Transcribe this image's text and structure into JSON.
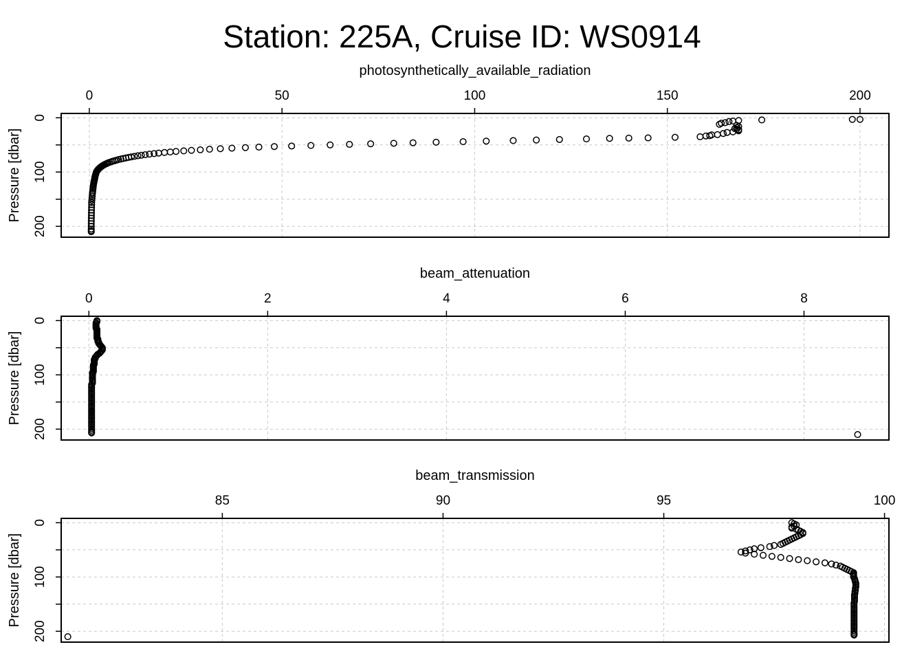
{
  "figure": {
    "title": "Station: 225A, Cruise ID: WS0914"
  },
  "chart_data": [
    {
      "type": "scatter",
      "title": "photosynthetically_available_radiation",
      "xlabel": "",
      "ylabel": "Pressure [dbar]",
      "xlim": [
        -7.3,
        207.5
      ],
      "ylim": [
        220,
        -8
      ],
      "y_reversed": true,
      "x_axis_position": "top",
      "grid": true,
      "xticks": [
        0,
        50,
        100,
        150,
        200
      ],
      "yticks": [
        0,
        100,
        200
      ],
      "minor_yticks": [
        50,
        150
      ],
      "x": [
        198,
        200,
        174.5,
        168.5,
        167,
        166,
        165,
        164,
        163.5,
        168,
        168.5,
        168,
        167.5,
        168,
        168.5,
        168.5,
        167,
        165.5,
        164.5,
        163,
        161.5,
        161,
        160,
        158.5,
        152,
        145,
        140,
        135,
        129,
        122,
        116,
        110,
        103,
        97,
        90,
        84,
        79,
        73,
        67.5,
        62.5,
        57.5,
        52.5,
        48,
        44,
        40.5,
        37,
        34,
        31.2,
        28.8,
        26.5,
        24.5,
        22.5,
        21,
        19.5,
        18,
        16.8,
        15.6,
        14.5,
        13.5,
        12.6,
        11.7,
        10.9,
        10.2,
        9.5,
        8.8,
        8.2,
        7.6,
        7.1,
        6.6,
        6.1,
        5.7,
        5.3,
        4.9,
        4.6,
        4.3,
        4,
        3.75,
        3.5,
        3.3,
        3.1,
        2.9,
        2.75,
        2.6,
        2.45,
        2.3,
        2.2,
        2.1,
        2,
        1.9,
        1.82,
        1.74,
        1.66,
        1.58,
        1.5,
        1.45,
        1.4,
        1.34,
        1.28,
        1.22,
        1.16,
        1.1,
        1.05,
        1,
        0.95,
        0.9,
        0.85,
        0.8,
        0.75,
        0.7,
        0.65,
        0.6,
        0.6,
        0.58,
        0.56,
        0.55,
        0.54,
        0.53,
        0.52,
        0.51,
        0.5,
        0.5,
        0.5,
        0.5
      ],
      "y": [
        3,
        3,
        4,
        5,
        6,
        7,
        9,
        10,
        12,
        14,
        16,
        18,
        20,
        21,
        22,
        24,
        26,
        27,
        29,
        31,
        31.5,
        33,
        33.5,
        35,
        36,
        37,
        37.5,
        38,
        39,
        40,
        41,
        42,
        43,
        44,
        45,
        46,
        47,
        48,
        49,
        50,
        51,
        52,
        53,
        54,
        55,
        56,
        57,
        58,
        59,
        60,
        61,
        62,
        63,
        64,
        65,
        66,
        67,
        68,
        69,
        70,
        71,
        72,
        73,
        74,
        75,
        76,
        77,
        78,
        79,
        80,
        81,
        82,
        83,
        84,
        85,
        86,
        87,
        88,
        89,
        90,
        91,
        92,
        93,
        94,
        95,
        96,
        97,
        98,
        99,
        100,
        102,
        104,
        106,
        108,
        110,
        112,
        114,
        116,
        118,
        120,
        122,
        125,
        128,
        131,
        134,
        137,
        140,
        144,
        148,
        152,
        156,
        160,
        165,
        170,
        175,
        180,
        185,
        190,
        195,
        200,
        205,
        208,
        210
      ]
    },
    {
      "type": "scatter",
      "title": "beam_attenuation",
      "xlabel": "",
      "ylabel": "Pressure [dbar]",
      "xlim": [
        -0.31,
        8.95
      ],
      "ylim": [
        220,
        -8
      ],
      "y_reversed": true,
      "x_axis_position": "top",
      "grid": true,
      "xticks": [
        0,
        2,
        4,
        6,
        8
      ],
      "yticks": [
        0,
        100,
        200
      ],
      "minor_yticks": [
        50,
        150
      ],
      "x": [
        0.09,
        0.09,
        0.08,
        0.08,
        0.08,
        0.08,
        0.08,
        0.08,
        0.09,
        0.09,
        0.09,
        0.09,
        0.09,
        0.09,
        0.09,
        0.09,
        0.09,
        0.1,
        0.1,
        0.1,
        0.11,
        0.11,
        0.12,
        0.13,
        0.14,
        0.15,
        0.15,
        0.15,
        0.14,
        0.13,
        0.12,
        0.1,
        0.09,
        0.08,
        0.07,
        0.07,
        0.06,
        0.06,
        0.06,
        0.06,
        0.06,
        0.05,
        0.05,
        0.05,
        0.05,
        0.05,
        0.05,
        0.05,
        0.04,
        0.04,
        0.04,
        0.04,
        0.04,
        0.04,
        0.04,
        0.04,
        0.03,
        0.03,
        0.03,
        0.03,
        0.03,
        0.03,
        0.03,
        0.03,
        0.03,
        0.03,
        0.03,
        0.03,
        0.03,
        0.03,
        0.03,
        0.03,
        0.03,
        0.03,
        0.03,
        0.03,
        0.03,
        0.03,
        0.03,
        0.03,
        0.03,
        0.03,
        0.03,
        0.03,
        0.03,
        0.03,
        0.03,
        8.6
      ],
      "y": [
        0,
        2,
        4,
        6,
        8,
        10,
        12,
        14,
        16,
        18,
        20,
        22,
        24,
        26,
        28,
        30,
        32,
        34,
        36,
        38,
        40,
        42,
        44,
        46,
        48,
        50,
        52,
        54,
        56,
        58,
        60,
        62,
        64,
        66,
        68,
        70,
        72,
        74,
        76,
        78,
        80,
        82,
        84,
        86,
        88,
        90,
        92,
        94,
        96,
        98,
        100,
        103,
        106,
        109,
        112,
        115,
        118,
        121,
        124,
        127,
        130,
        133,
        136,
        139,
        142,
        145,
        148,
        151,
        154,
        157,
        160,
        163,
        166,
        169,
        172,
        175,
        178,
        181,
        184,
        187,
        190,
        193,
        196,
        199,
        202,
        205,
        207,
        210
      ]
    },
    {
      "type": "scatter",
      "title": "beam_transmission",
      "xlabel": "",
      "ylabel": "Pressure [dbar]",
      "xlim": [
        81.35,
        100.1
      ],
      "ylim": [
        220,
        -8
      ],
      "y_reversed": true,
      "x_axis_position": "top",
      "grid": true,
      "xticks": [
        85,
        90,
        95,
        100
      ],
      "yticks": [
        0,
        100,
        200
      ],
      "minor_yticks": [
        50,
        150
      ],
      "x": [
        97.9,
        97.95,
        98,
        97.95,
        97.9,
        97.9,
        98,
        98.05,
        98.1,
        98.15,
        98.15,
        98.1,
        98.05,
        98,
        97.95,
        97.9,
        97.85,
        97.8,
        97.75,
        97.7,
        97.65,
        97.5,
        97.4,
        97.2,
        97.05,
        96.95,
        96.85,
        96.75,
        96.85,
        97.05,
        97.25,
        97.45,
        97.65,
        97.85,
        98.05,
        98.25,
        98.45,
        98.65,
        98.8,
        98.9,
        99,
        99.05,
        99.1,
        99.15,
        99.2,
        99.25,
        99.3,
        99.3,
        99.3,
        99.3,
        99.3,
        99.32,
        99.33,
        99.34,
        99.35,
        99.35,
        99.35,
        99.34,
        99.34,
        99.33,
        99.33,
        99.32,
        99.32,
        99.32,
        99.32,
        99.32,
        99.31,
        99.31,
        99.31,
        99.31,
        99.31,
        99.31,
        99.31,
        99.31,
        99.31,
        99.31,
        99.31,
        99.31,
        99.31,
        99.31,
        99.31,
        99.31,
        99.31,
        99.31,
        99.31,
        99.31,
        99.31,
        81.5
      ],
      "y": [
        0,
        2,
        4,
        6,
        8,
        10,
        12,
        14,
        16,
        18,
        20,
        22,
        24,
        26,
        28,
        30,
        32,
        34,
        36,
        38,
        40,
        42,
        44,
        46,
        48,
        50,
        52,
        54,
        56,
        58,
        60,
        62,
        64,
        66,
        68,
        70,
        72,
        74,
        76,
        78,
        80,
        82,
        84,
        86,
        88,
        90,
        92,
        94,
        96,
        98,
        100,
        103,
        106,
        109,
        112,
        115,
        118,
        121,
        124,
        127,
        130,
        133,
        136,
        139,
        142,
        145,
        148,
        151,
        154,
        157,
        160,
        163,
        166,
        169,
        172,
        175,
        178,
        181,
        184,
        187,
        190,
        193,
        196,
        199,
        202,
        205,
        207,
        210
      ]
    }
  ]
}
